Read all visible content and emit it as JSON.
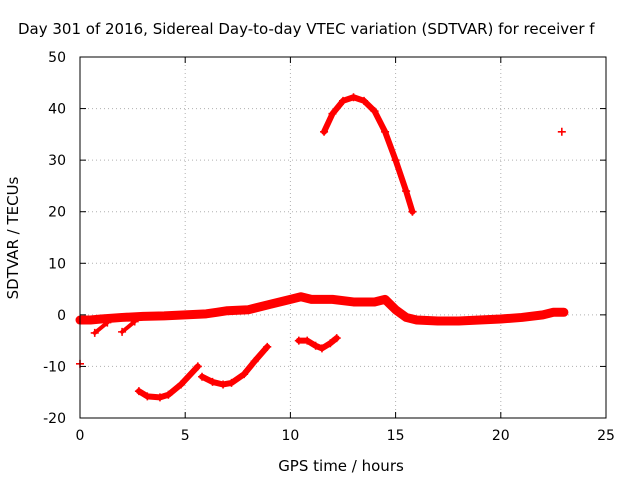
{
  "chart_data": {
    "type": "scatter",
    "title": "Day 301 of 2016, Sidereal Day-to-day VTEC variation (SDTVAR) for receiver f",
    "xlabel": "GPS time / hours",
    "ylabel": "SDTVAR / TECUs",
    "xlim": [
      0,
      25
    ],
    "ylim": [
      -20,
      50
    ],
    "xticks": [
      0,
      5,
      10,
      15,
      20,
      25
    ],
    "yticks": [
      -20,
      -10,
      0,
      10,
      20,
      30,
      40,
      50
    ],
    "grid": true,
    "marker": "+",
    "color": "#ff0000",
    "series": [
      {
        "name": "baseline",
        "style": "band",
        "x": [
          0.0,
          0.5,
          1.0,
          2.0,
          3.0,
          4.0,
          5.0,
          6.0,
          6.5,
          7.0,
          8.0,
          9.0,
          10.0,
          10.5,
          11.0,
          12.0,
          13.0,
          14.0,
          14.5,
          15.0,
          15.5,
          16.0,
          17.0,
          18.0,
          19.0,
          20.0,
          21.0,
          22.0,
          22.5,
          23.0
        ],
        "y": [
          -1.0,
          -1.0,
          -0.8,
          -0.5,
          -0.3,
          -0.2,
          0.0,
          0.2,
          0.5,
          0.8,
          1.0,
          2.0,
          3.0,
          3.5,
          3.0,
          3.0,
          2.5,
          2.5,
          3.0,
          1.0,
          -0.5,
          -1.0,
          -1.2,
          -1.2,
          -1.0,
          -0.8,
          -0.5,
          0.0,
          0.5,
          0.5
        ]
      },
      {
        "name": "arc-high",
        "x": [
          11.6,
          12.0,
          12.5,
          13.0,
          13.5,
          14.0,
          14.5,
          15.0,
          15.5,
          15.8
        ],
        "y": [
          35.5,
          39.0,
          41.5,
          42.2,
          41.5,
          39.5,
          35.5,
          30.0,
          24.0,
          20.0
        ]
      },
      {
        "name": "arc-low-1",
        "x": [
          2.8,
          3.2,
          3.8,
          4.2,
          4.8,
          5.6
        ],
        "y": [
          -14.8,
          -15.8,
          -16.0,
          -15.5,
          -13.5,
          -10.0
        ]
      },
      {
        "name": "arc-low-2",
        "x": [
          5.8,
          6.3,
          6.8,
          7.2,
          7.8,
          8.3,
          8.9
        ],
        "y": [
          -12.0,
          -13.0,
          -13.5,
          -13.2,
          -11.5,
          -9.0,
          -6.2
        ]
      },
      {
        "name": "arc-low-3",
        "x": [
          10.4,
          10.8,
          11.2,
          11.5,
          11.9,
          12.2
        ],
        "y": [
          -5.0,
          -5.0,
          -6.0,
          -6.5,
          -5.5,
          -4.5
        ]
      },
      {
        "name": "spur-1",
        "x": [
          0.7,
          1.3
        ],
        "y": [
          -3.5,
          -1.5
        ]
      },
      {
        "name": "spur-2",
        "x": [
          2.0,
          2.6
        ],
        "y": [
          -3.3,
          -1.3
        ]
      },
      {
        "name": "isolated",
        "x": [
          0.0,
          22.9
        ],
        "y": [
          -9.5,
          35.5
        ]
      }
    ]
  }
}
